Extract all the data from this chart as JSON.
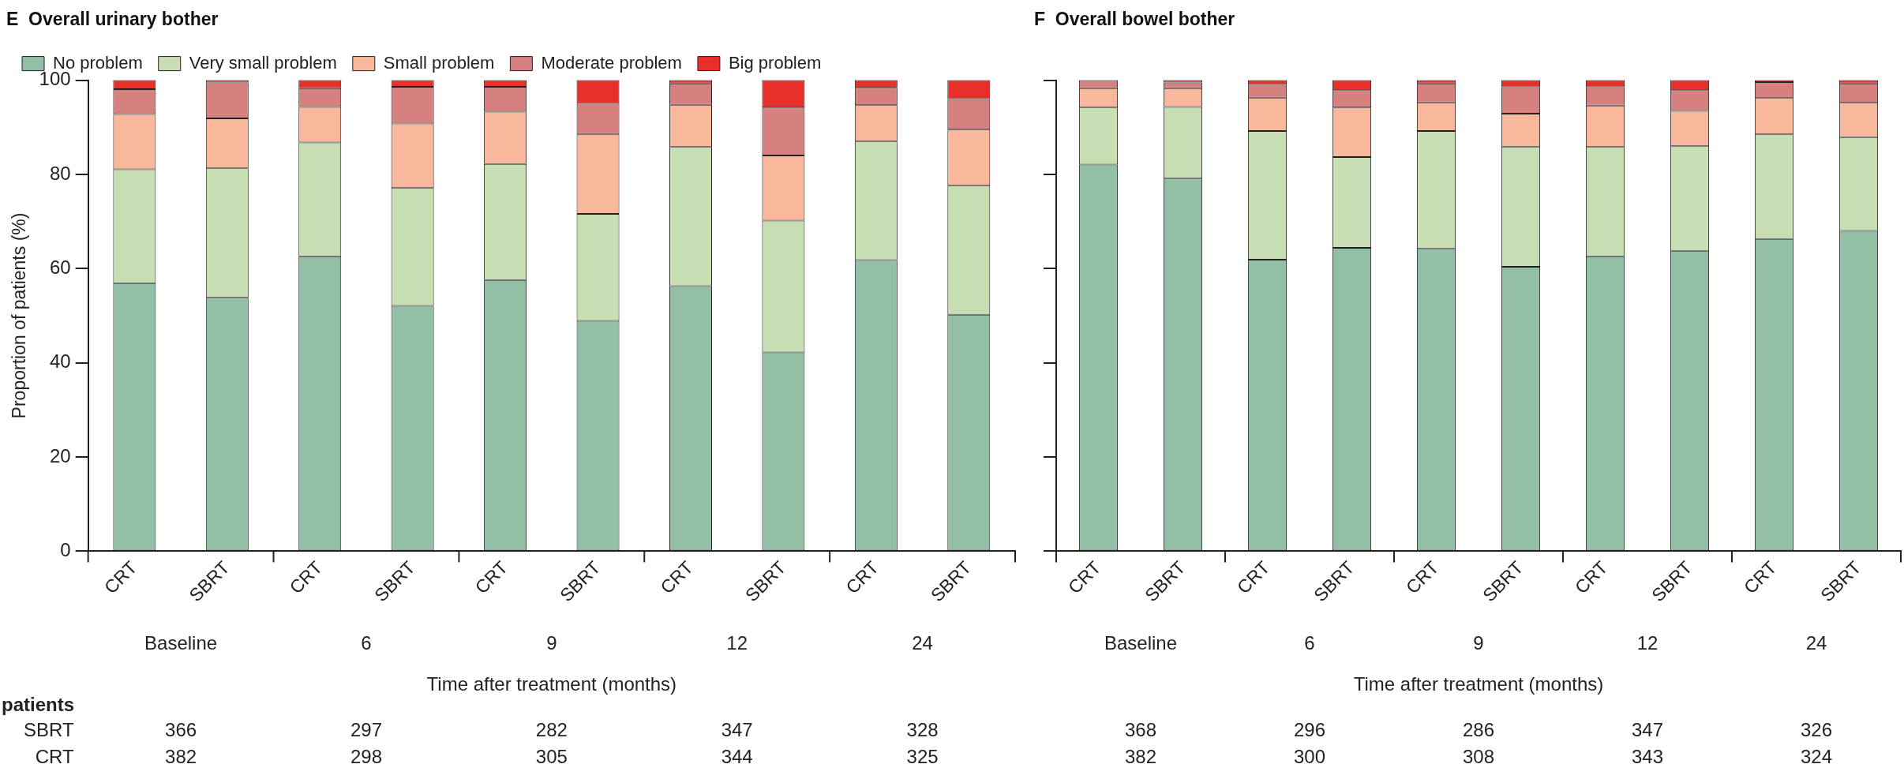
{
  "chart_data": [
    {
      "type": "bar",
      "title": "E  Overall urinary bother",
      "ylabel": "Proportion of patients (%)",
      "xlabel": "Time after treatment (months)",
      "stacked": true,
      "legend": "top",
      "ylim": [
        0,
        100
      ],
      "yticks": [
        0,
        20,
        40,
        60,
        80,
        100
      ],
      "categories": [
        "CRT",
        "SBRT",
        "CRT",
        "SBRT",
        "CRT",
        "SBRT",
        "CRT",
        "SBRT",
        "CRT",
        "SBRT"
      ],
      "series": [
        {
          "name": "No problem",
          "color": "#93bfa6",
          "values": [
            56.9,
            53.8,
            62.6,
            52.1,
            57.6,
            48.9,
            56.3,
            42.2,
            61.8,
            50.2
          ]
        },
        {
          "name": "Very small problem",
          "color": "#c8dfb3",
          "values": [
            24.2,
            27.5,
            24.2,
            25.0,
            24.6,
            22.7,
            29.5,
            28.0,
            25.2,
            27.4
          ]
        },
        {
          "name": "Small problem",
          "color": "#f9b79b",
          "values": [
            11.7,
            10.6,
            7.5,
            13.7,
            11.1,
            17.0,
            9.0,
            13.8,
            7.7,
            11.9
          ]
        },
        {
          "name": "Moderate problem",
          "color": "#d6817f",
          "values": [
            5.3,
            7.6,
            4.0,
            7.8,
            5.3,
            6.4,
            4.5,
            10.2,
            3.7,
            6.5
          ]
        },
        {
          "name": "Big problem",
          "color": "#e8302a",
          "values": [
            1.9,
            0.5,
            1.7,
            1.4,
            1.4,
            5.0,
            0.7,
            5.8,
            1.6,
            4.0
          ]
        }
      ],
      "annotations": [
        "Baseline",
        "6",
        "9",
        "12",
        "24",
        "patients",
        "SBRT",
        "366",
        "297",
        "282",
        "347",
        "328",
        "CRT",
        "382",
        "298",
        "305",
        "344",
        "325"
      ]
    },
    {
      "type": "bar",
      "title": "F  Overall bowel bother",
      "xlabel": "Time after treatment (months)",
      "stacked": true,
      "tick_labels": "x",
      "ylim": [
        0,
        100
      ],
      "yticks": [
        0,
        20,
        40,
        60,
        80,
        100
      ],
      "categories": [
        "CRT",
        "SBRT",
        "CRT",
        "SBRT",
        "CRT",
        "SBRT",
        "CRT",
        "SBRT",
        "CRT",
        "SBRT"
      ],
      "series": [
        {
          "color": "#93bfa6",
          "values": [
            82.1,
            79.1,
            61.9,
            64.4,
            64.2,
            60.4,
            62.6,
            63.8,
            66.3,
            68.0
          ]
        },
        {
          "color": "#c8dfb3",
          "values": [
            12.1,
            15.2,
            27.3,
            19.3,
            25.0,
            25.5,
            23.2,
            22.2,
            22.2,
            19.9
          ]
        },
        {
          "color": "#f9b79b",
          "values": [
            4.1,
            4.0,
            7.1,
            10.5,
            6.1,
            7.0,
            8.8,
            7.5,
            7.7,
            7.3
          ]
        },
        {
          "color": "#d6817f",
          "values": [
            1.7,
            1.2,
            2.7,
            3.7,
            4.0,
            5.6,
            3.9,
            4.4,
            3.4,
            4.1
          ]
        },
        {
          "color": "#e8302a",
          "values": [
            0,
            0.5,
            1.0,
            2.1,
            0.7,
            1.5,
            1.5,
            2.1,
            0.4,
            0.7
          ]
        }
      ],
      "annotations": [
        "Baseline",
        "6",
        "9",
        "12",
        "24",
        "368",
        "296",
        "286",
        "347",
        "326",
        "382",
        "300",
        "308",
        "343",
        "324"
      ]
    }
  ]
}
